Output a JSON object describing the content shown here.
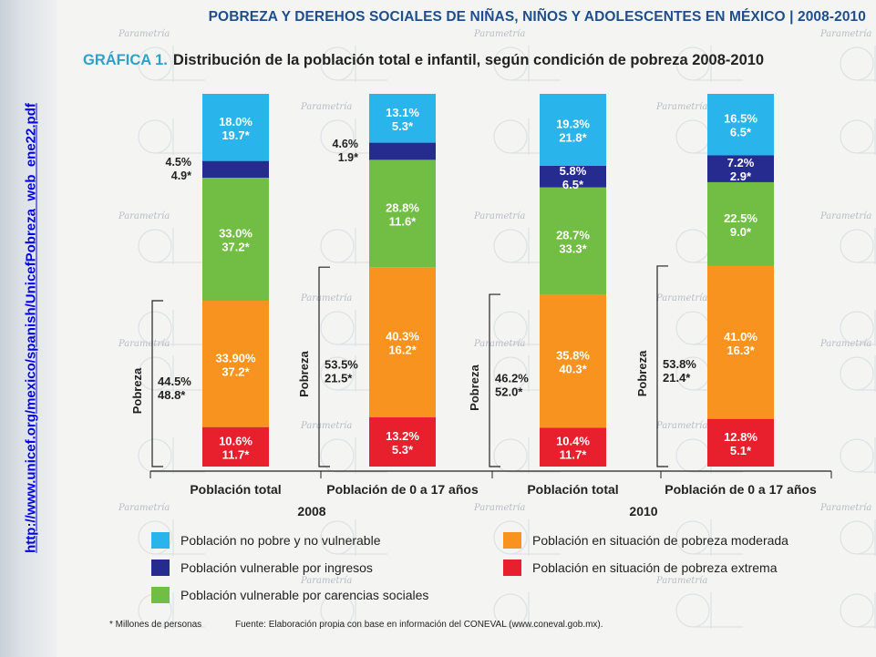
{
  "header": {
    "title": "POBREZA Y DEREHOS SOCIALES DE NIÑAS, NIÑOS Y ADOLESCENTES EN MÉXICO | 2008-2010"
  },
  "sidebar": {
    "link_text": "http://www.unicef.org/mexico/spanish/UnicefPobreza_web_ene22.pdf"
  },
  "background": {
    "watermark_text": "Parametría"
  },
  "figure": {
    "prefix": "GRÁFICA 1.",
    "title": "Distribución de la población total e infantil, según condición de pobreza 2008-2010"
  },
  "chart_data": {
    "type": "bar",
    "stacked": true,
    "categories": [
      "Población total",
      "Población de 0 a 17 años",
      "Población total",
      "Población de 0 a 17 años"
    ],
    "groups": [
      {
        "label": "2008",
        "categories": [
          0,
          1
        ]
      },
      {
        "label": "2010",
        "categories": [
          2,
          3
        ]
      }
    ],
    "ylim": [
      0,
      100
    ],
    "grid": false,
    "legend_position": "bottom",
    "series": [
      {
        "name": "Población en situación de pobreza extrema",
        "color": "#e8202d",
        "values": [
          10.6,
          13.2,
          10.4,
          12.8
        ],
        "pct_labels": [
          "10.6%",
          "13.2%",
          "10.4%",
          "12.8%"
        ],
        "millions_labels": [
          "11.7*",
          "5.3*",
          "11.7*",
          "5.1*"
        ]
      },
      {
        "name": "Población en situación de pobreza moderada",
        "color": "#f7931e",
        "values": [
          33.9,
          40.3,
          35.8,
          41.0
        ],
        "pct_labels": [
          "33.90%",
          "40.3%",
          "35.8%",
          "41.0%"
        ],
        "millions_labels": [
          "37.2*",
          "16.2*",
          "40.3*",
          "16.3*"
        ]
      },
      {
        "name": "Población vulnerable por carencias sociales",
        "color": "#72be44",
        "values": [
          33.0,
          28.8,
          28.7,
          22.5
        ],
        "pct_labels": [
          "33.0%",
          "28.8%",
          "28.7%",
          "22.5%"
        ],
        "millions_labels": [
          "37.2*",
          "11.6*",
          "33.3*",
          "9.0*"
        ]
      },
      {
        "name": "Población vulnerable por ingresos",
        "color": "#262b8f",
        "values": [
          4.5,
          4.6,
          5.8,
          7.2
        ],
        "pct_labels": [
          "4.5%",
          "4.6%",
          "5.8%",
          "7.2%"
        ],
        "millions_labels": [
          "4.9*",
          "1.9*",
          "6.5*",
          "2.9*"
        ]
      },
      {
        "name": "Población no pobre y no vulnerable",
        "color": "#29b4ec",
        "values": [
          18.0,
          13.1,
          19.3,
          16.5
        ],
        "pct_labels": [
          "18.0%",
          "13.1%",
          "19.3%",
          "16.5%"
        ],
        "millions_labels": [
          "19.7*",
          "5.3*",
          "21.8*",
          "6.5*"
        ]
      }
    ],
    "poverty_brackets": [
      {
        "label": "Pobreza",
        "pct": "44.5%",
        "millions": "48.8*"
      },
      {
        "label": "Pobreza",
        "pct": "53.5%",
        "millions": "21.5*"
      },
      {
        "label": "Pobreza",
        "pct": "46.2%",
        "millions": "52.0*"
      },
      {
        "label": "Pobreza",
        "pct": "53.8%",
        "millions": "21.4*"
      }
    ]
  },
  "legend": {
    "items": [
      {
        "label": "Población no pobre y no vulnerable",
        "color": "#29b4ec"
      },
      {
        "label": "Población vulnerable por ingresos",
        "color": "#262b8f"
      },
      {
        "label": "Población vulnerable por carencias sociales",
        "color": "#72be44"
      },
      {
        "label": "Población en situación de pobreza moderada",
        "color": "#f7931e"
      },
      {
        "label": "Población en situación de pobreza extrema",
        "color": "#e8202d"
      }
    ]
  },
  "notes": {
    "footnote": "* Millones de personas",
    "source": "Fuente: Elaboración propia con base en información del CONEVAL (www.coneval.gob.mx)."
  }
}
